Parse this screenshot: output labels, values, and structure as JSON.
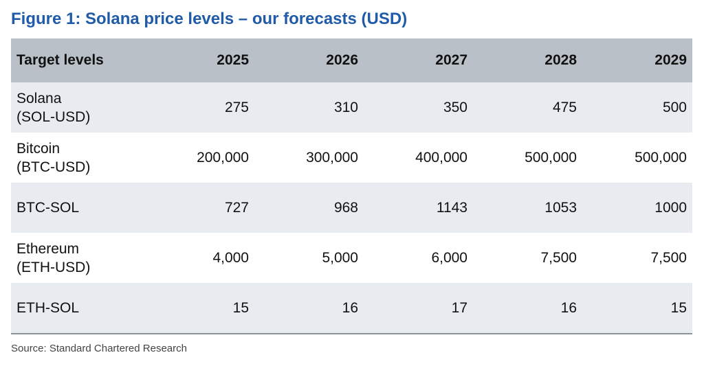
{
  "title": "Figure 1: Solana price levels – our forecasts (USD)",
  "source": "Source: Standard Chartered Research",
  "chart_data": {
    "type": "table",
    "columns": [
      "Target levels",
      "2025",
      "2026",
      "2027",
      "2028",
      "2029"
    ],
    "rows": [
      {
        "label_line1": "Solana",
        "label_line2": "(SOL-USD)",
        "values": [
          "275",
          "310",
          "350",
          "475",
          "500"
        ]
      },
      {
        "label_line1": "Bitcoin",
        "label_line2": "(BTC-USD)",
        "values": [
          "200,000",
          "300,000",
          "400,000",
          "500,000",
          "500,000"
        ]
      },
      {
        "label_line1": "BTC-SOL",
        "label_line2": "",
        "values": [
          "727",
          "968",
          "1143",
          "1053",
          "1000"
        ]
      },
      {
        "label_line1": "Ethereum",
        "label_line2": "(ETH-USD)",
        "values": [
          "4,000",
          "5,000",
          "6,000",
          "7,500",
          "7,500"
        ]
      },
      {
        "label_line1": "ETH-SOL",
        "label_line2": "",
        "values": [
          "15",
          "16",
          "17",
          "16",
          "15"
        ]
      }
    ]
  }
}
